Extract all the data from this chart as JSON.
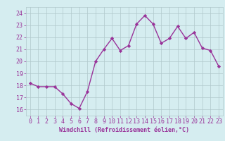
{
  "x": [
    0,
    1,
    2,
    3,
    4,
    5,
    6,
    7,
    8,
    9,
    10,
    11,
    12,
    13,
    14,
    15,
    16,
    17,
    18,
    19,
    20,
    21,
    22,
    23
  ],
  "y": [
    18.2,
    17.9,
    17.9,
    17.9,
    17.3,
    16.5,
    16.1,
    17.5,
    20.0,
    21.0,
    21.9,
    20.9,
    21.3,
    23.1,
    23.8,
    23.1,
    21.5,
    21.9,
    22.9,
    21.9,
    22.4,
    21.1,
    20.9,
    19.6
  ],
  "line_color": "#993399",
  "marker": "D",
  "marker_size": 2.2,
  "linewidth": 1.0,
  "bg_color": "#d5edf0",
  "grid_color": "#b0c8cc",
  "xlabel": "Windchill (Refroidissement éolien,°C)",
  "xlabel_fontsize": 6.0,
  "tick_fontsize": 6.0,
  "ylim": [
    15.5,
    24.5
  ],
  "xlim": [
    -0.5,
    23.5
  ],
  "yticks": [
    16,
    17,
    18,
    19,
    20,
    21,
    22,
    23,
    24
  ],
  "xticks": [
    0,
    1,
    2,
    3,
    4,
    5,
    6,
    7,
    8,
    9,
    10,
    11,
    12,
    13,
    14,
    15,
    16,
    17,
    18,
    19,
    20,
    21,
    22,
    23
  ]
}
